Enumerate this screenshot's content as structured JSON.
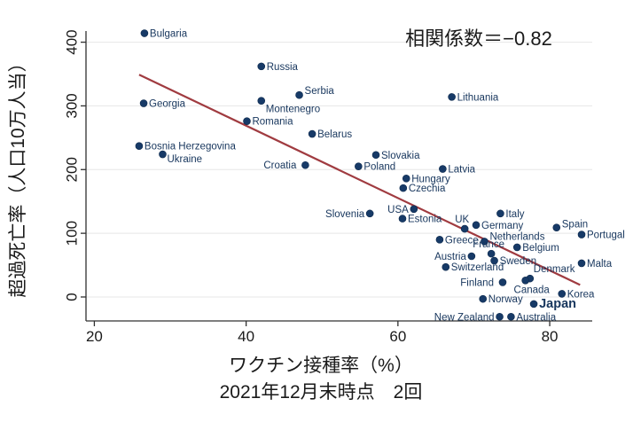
{
  "chart_data": {
    "type": "scatter",
    "annotation": "相関係数＝−0.82",
    "xlabel": "ワクチン接種率（%）",
    "xlabel_sub": "2021年12月末時点　2回",
    "ylabel": "超過死亡率（人口10万人当）",
    "x_ticks": [
      20,
      40,
      60,
      80
    ],
    "y_ticks": [
      0,
      100,
      200,
      300,
      400
    ],
    "xlim": [
      18.9,
      85.6
    ],
    "ylim": [
      -37.6,
      417.5
    ],
    "grid": "horizontal-only",
    "legend": "none",
    "trend_line": {
      "x1": 25.9,
      "y1": 349,
      "x2": 84.0,
      "y2": 19
    },
    "points": [
      {
        "label": "Bulgaria",
        "x": 26.6,
        "y": 414,
        "pos": "right"
      },
      {
        "label": "Georgia",
        "x": 26.5,
        "y": 304,
        "pos": "right"
      },
      {
        "label": "Bosnia Herzegovina",
        "x": 25.9,
        "y": 237,
        "pos": "right"
      },
      {
        "label": "Ukraine",
        "x": 29.0,
        "y": 224,
        "pos": "below-right",
        "dy": -4
      },
      {
        "label": "Russia",
        "x": 42.0,
        "y": 362,
        "pos": "right"
      },
      {
        "label": "Montenegro",
        "x": 42.0,
        "y": 308,
        "pos": "below-right"
      },
      {
        "label": "Serbia",
        "x": 47.0,
        "y": 317,
        "pos": "right",
        "dy": -5
      },
      {
        "label": "Romania",
        "x": 40.1,
        "y": 276,
        "pos": "right"
      },
      {
        "label": "Belarus",
        "x": 48.7,
        "y": 256,
        "pos": "right"
      },
      {
        "label": "Croatia",
        "x": 47.8,
        "y": 207,
        "pos": "left",
        "dx": -4
      },
      {
        "label": "Poland",
        "x": 54.8,
        "y": 205,
        "pos": "right"
      },
      {
        "label": "Slovakia",
        "x": 57.1,
        "y": 223,
        "pos": "right"
      },
      {
        "label": "Latvia",
        "x": 65.9,
        "y": 201,
        "pos": "right"
      },
      {
        "label": "Hungary",
        "x": 61.1,
        "y": 186,
        "pos": "right"
      },
      {
        "label": "Czechia",
        "x": 60.7,
        "y": 171,
        "pos": "right"
      },
      {
        "label": "Slovenia",
        "x": 56.3,
        "y": 131,
        "pos": "left"
      },
      {
        "label": "USA",
        "x": 62.1,
        "y": 138,
        "pos": "left"
      },
      {
        "label": "Estonia",
        "x": 60.6,
        "y": 123,
        "pos": "right"
      },
      {
        "label": "Lithuania",
        "x": 67.1,
        "y": 314,
        "pos": "right"
      },
      {
        "label": "UK",
        "x": 68.8,
        "y": 107,
        "pos": "above",
        "dx": -3
      },
      {
        "label": "Germany",
        "x": 70.3,
        "y": 113,
        "pos": "right"
      },
      {
        "label": "Italy",
        "x": 73.5,
        "y": 131,
        "pos": "right"
      },
      {
        "label": "Greece",
        "x": 65.5,
        "y": 90,
        "pos": "right"
      },
      {
        "label": "Netherlands",
        "x": 71.4,
        "y": 87,
        "pos": "right",
        "dy": -6
      },
      {
        "label": "Belgium",
        "x": 75.7,
        "y": 78,
        "pos": "right"
      },
      {
        "label": "Austria",
        "x": 69.7,
        "y": 64,
        "pos": "left"
      },
      {
        "label": "France",
        "x": 72.3,
        "y": 68,
        "pos": "above",
        "dx": -3
      },
      {
        "label": "Sweden",
        "x": 72.7,
        "y": 57,
        "pos": "right"
      },
      {
        "label": "Switzerland",
        "x": 66.3,
        "y": 47,
        "pos": "right"
      },
      {
        "label": "Spain",
        "x": 80.9,
        "y": 109,
        "pos": "right",
        "dy": -4
      },
      {
        "label": "Portugal",
        "x": 84.2,
        "y": 98,
        "pos": "right"
      },
      {
        "label": "Malta",
        "x": 84.2,
        "y": 53,
        "pos": "right"
      },
      {
        "label": "Denmark",
        "x": 77.4,
        "y": 29,
        "pos": "above-right"
      },
      {
        "label": "Canada",
        "x": 76.8,
        "y": 26,
        "pos": "below",
        "dx": 7
      },
      {
        "label": "Finland",
        "x": 73.8,
        "y": 23,
        "pos": "left",
        "dx": -4
      },
      {
        "label": "Korea",
        "x": 81.6,
        "y": 5,
        "pos": "right"
      },
      {
        "label": "Norway",
        "x": 71.2,
        "y": -3,
        "pos": "right"
      },
      {
        "label": "Japan",
        "x": 77.9,
        "y": -11,
        "pos": "right",
        "bold": true
      },
      {
        "label": "New Zealand",
        "x": 73.4,
        "y": -31,
        "pos": "left"
      },
      {
        "label": "Australia",
        "x": 74.9,
        "y": -31,
        "pos": "right"
      }
    ]
  },
  "colors": {
    "point_fill": "#173a67",
    "point_stroke": "#0e2a4d",
    "point_label": "#17365d",
    "trend": "#a03b40",
    "grid": "#e7e7e7",
    "axis": "#303030",
    "tick_text": "#1a1a1a"
  }
}
